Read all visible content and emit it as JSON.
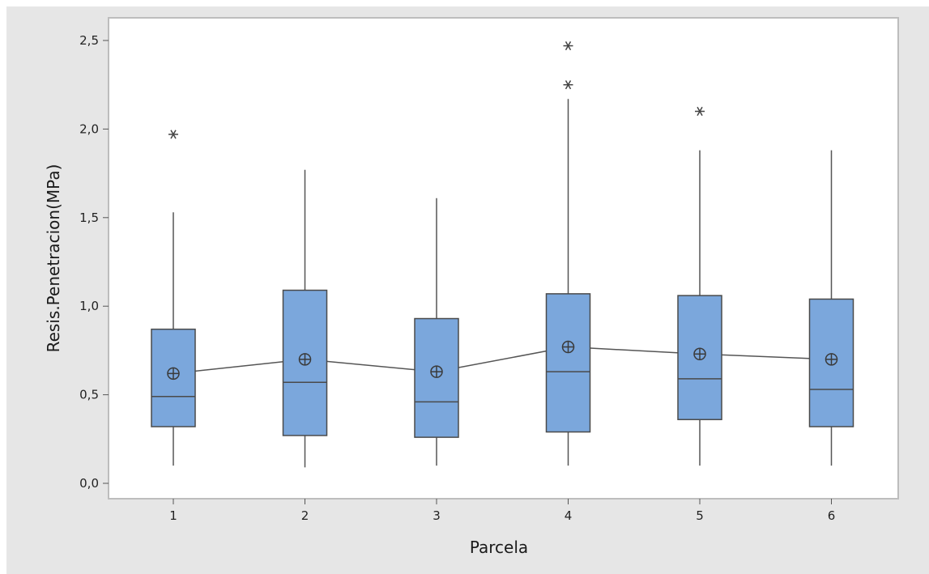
{
  "chart_data": {
    "type": "boxplot",
    "title": "",
    "xlabel": "Parcela",
    "ylabel": "Resis.Penetracion(MPa)",
    "ylim": [
      0,
      2.5
    ],
    "y_ticks": [
      0.0,
      0.5,
      1.0,
      1.5,
      2.0,
      2.5
    ],
    "y_tick_labels": [
      "0,0",
      "0,5",
      "1,0",
      "1,5",
      "2,0",
      "2,5"
    ],
    "categories": [
      "1",
      "2",
      "3",
      "4",
      "5",
      "6"
    ],
    "boxes": [
      {
        "category": "1",
        "whisker_low": 0.1,
        "q1": 0.32,
        "median": 0.49,
        "q3": 0.87,
        "whisker_high": 1.53,
        "mean": 0.62,
        "outliers": [
          1.97
        ]
      },
      {
        "category": "2",
        "whisker_low": 0.09,
        "q1": 0.27,
        "median": 0.57,
        "q3": 1.09,
        "whisker_high": 1.77,
        "mean": 0.7,
        "outliers": []
      },
      {
        "category": "3",
        "whisker_low": 0.1,
        "q1": 0.26,
        "median": 0.46,
        "q3": 0.93,
        "whisker_high": 1.61,
        "mean": 0.63,
        "outliers": []
      },
      {
        "category": "4",
        "whisker_low": 0.1,
        "q1": 0.29,
        "median": 0.63,
        "q3": 1.07,
        "whisker_high": 2.17,
        "mean": 0.77,
        "outliers": [
          2.25,
          2.47
        ]
      },
      {
        "category": "5",
        "whisker_low": 0.1,
        "q1": 0.36,
        "median": 0.59,
        "q3": 1.06,
        "whisker_high": 1.88,
        "mean": 0.73,
        "outliers": [
          2.1
        ]
      },
      {
        "category": "6",
        "whisker_low": 0.1,
        "q1": 0.32,
        "median": 0.53,
        "q3": 1.04,
        "whisker_high": 1.88,
        "mean": 0.7,
        "outliers": []
      }
    ],
    "mean_connect_line": true,
    "grid": false,
    "legend": "none",
    "colors": {
      "box_fill": "#7ba7dc",
      "box_stroke": "#4a4a4a",
      "line": "#555555",
      "plot_background": "#ffffff",
      "figure_background": "#e6e6e6"
    }
  }
}
